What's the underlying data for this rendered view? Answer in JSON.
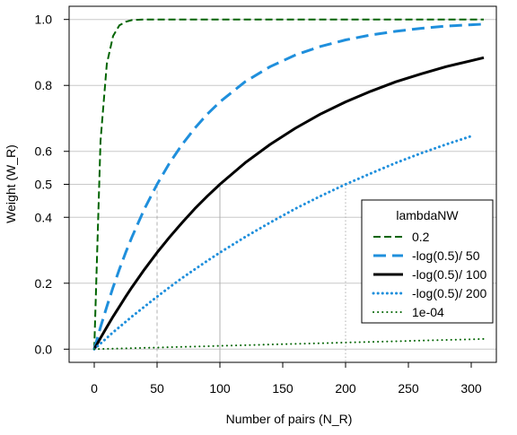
{
  "chart_data": {
    "type": "line",
    "title": "",
    "xlabel": "Number of pairs (N_R)",
    "ylabel": "Weight (W_R)",
    "xlim": [
      -20,
      320
    ],
    "ylim": [
      -0.04,
      1.04
    ],
    "xticks": [
      0,
      50,
      100,
      150,
      200,
      250,
      300
    ],
    "yticks": [
      0.0,
      0.2,
      0.4,
      0.5,
      0.6,
      0.8,
      1.0
    ],
    "ytick_labels": [
      "0.0",
      "0.2",
      "0.4",
      "0.5",
      "0.6",
      "0.8",
      "1.0"
    ],
    "grid": "horizontal gridlines at y ticks",
    "reference_lines": [
      {
        "x": 50,
        "y": 0.5,
        "style": "dashed",
        "color": "#b0b0b0"
      },
      {
        "x": 100,
        "y": 0.5,
        "style": "solid",
        "color": "#b0b0b0"
      },
      {
        "x": 200,
        "y": 0.5,
        "style": "dotted",
        "color": "#b0b0b0"
      }
    ],
    "legend": {
      "title": "lambdaNW",
      "position": "right-middle",
      "entries": [
        "0.2",
        "-log(0.5)/ 50",
        "-log(0.5)/ 100",
        "-log(0.5)/ 200",
        "1e-04"
      ]
    },
    "x": [
      0,
      5,
      10,
      15,
      20,
      25,
      30,
      40,
      50,
      60,
      70,
      80,
      90,
      100,
      120,
      140,
      160,
      180,
      200,
      220,
      240,
      260,
      280,
      300,
      310
    ],
    "series": [
      {
        "name": "0.2",
        "color": "#006400",
        "dash": "dashed",
        "width": 2,
        "x_max": 310,
        "values": [
          0.0,
          0.632,
          0.865,
          0.95,
          0.982,
          0.993,
          0.998,
          1.0,
          1.0,
          1.0,
          1.0,
          1.0,
          1.0,
          1.0,
          1.0,
          1.0,
          1.0,
          1.0,
          1.0,
          1.0,
          1.0,
          1.0,
          1.0,
          1.0,
          1.0
        ]
      },
      {
        "name": "-log(0.5)/ 50",
        "color": "#1f8fdc",
        "dash": "longdash",
        "width": 3,
        "x_max": 310,
        "values": [
          0.0,
          0.067,
          0.129,
          0.188,
          0.242,
          0.293,
          0.34,
          0.426,
          0.5,
          0.565,
          0.621,
          0.67,
          0.713,
          0.75,
          0.811,
          0.857,
          0.892,
          0.918,
          0.938,
          0.953,
          0.964,
          0.973,
          0.98,
          0.984,
          0.986
        ]
      },
      {
        "name": "-log(0.5)/ 100",
        "color": "#000000",
        "dash": "solid",
        "width": 3,
        "x_max": 310,
        "values": [
          0.0,
          0.034,
          0.067,
          0.099,
          0.129,
          0.159,
          0.188,
          0.242,
          0.293,
          0.34,
          0.384,
          0.426,
          0.464,
          0.5,
          0.565,
          0.621,
          0.67,
          0.713,
          0.75,
          0.782,
          0.811,
          0.835,
          0.857,
          0.875,
          0.884
        ]
      },
      {
        "name": "-log(0.5)/ 200",
        "color": "#1f8fdc",
        "dash": "dotted",
        "width": 3,
        "x_max": 300,
        "values": [
          0.0,
          0.017,
          0.034,
          0.051,
          0.067,
          0.083,
          0.099,
          0.129,
          0.159,
          0.188,
          0.216,
          0.242,
          0.268,
          0.293,
          0.34,
          0.384,
          0.426,
          0.464,
          0.5,
          0.533,
          0.565,
          0.594,
          0.621,
          0.646,
          0.658
        ]
      },
      {
        "name": "1e-04",
        "color": "#006400",
        "dash": "dotted",
        "width": 2,
        "x_max": 310,
        "values": [
          0.0,
          0.0005,
          0.001,
          0.0015,
          0.002,
          0.0025,
          0.003,
          0.004,
          0.005,
          0.006,
          0.007,
          0.008,
          0.009,
          0.01,
          0.012,
          0.014,
          0.016,
          0.018,
          0.02,
          0.022,
          0.024,
          0.026,
          0.028,
          0.03,
          0.031
        ]
      }
    ]
  }
}
